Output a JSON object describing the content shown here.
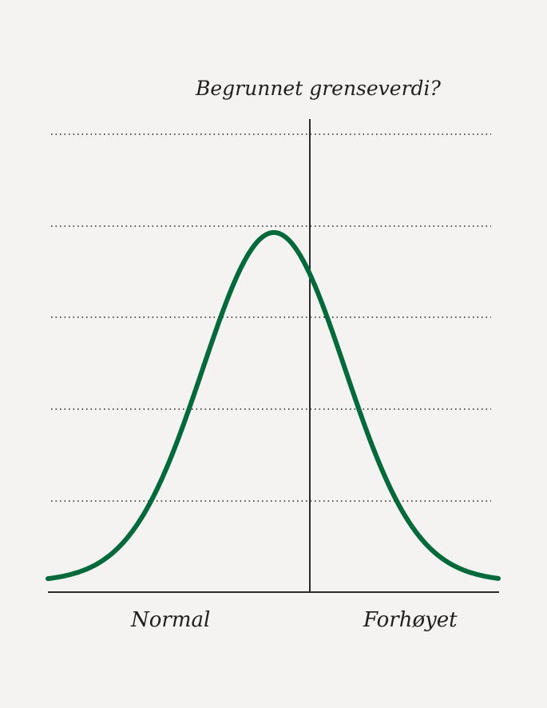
{
  "title": "Begrunnet grenseverdi?",
  "labels": {
    "left": "Normal",
    "right": "Forhøyet"
  },
  "colors": {
    "curve": "#006a3a",
    "lines": "#2a2a2a",
    "background": "#f4f3f1"
  }
}
